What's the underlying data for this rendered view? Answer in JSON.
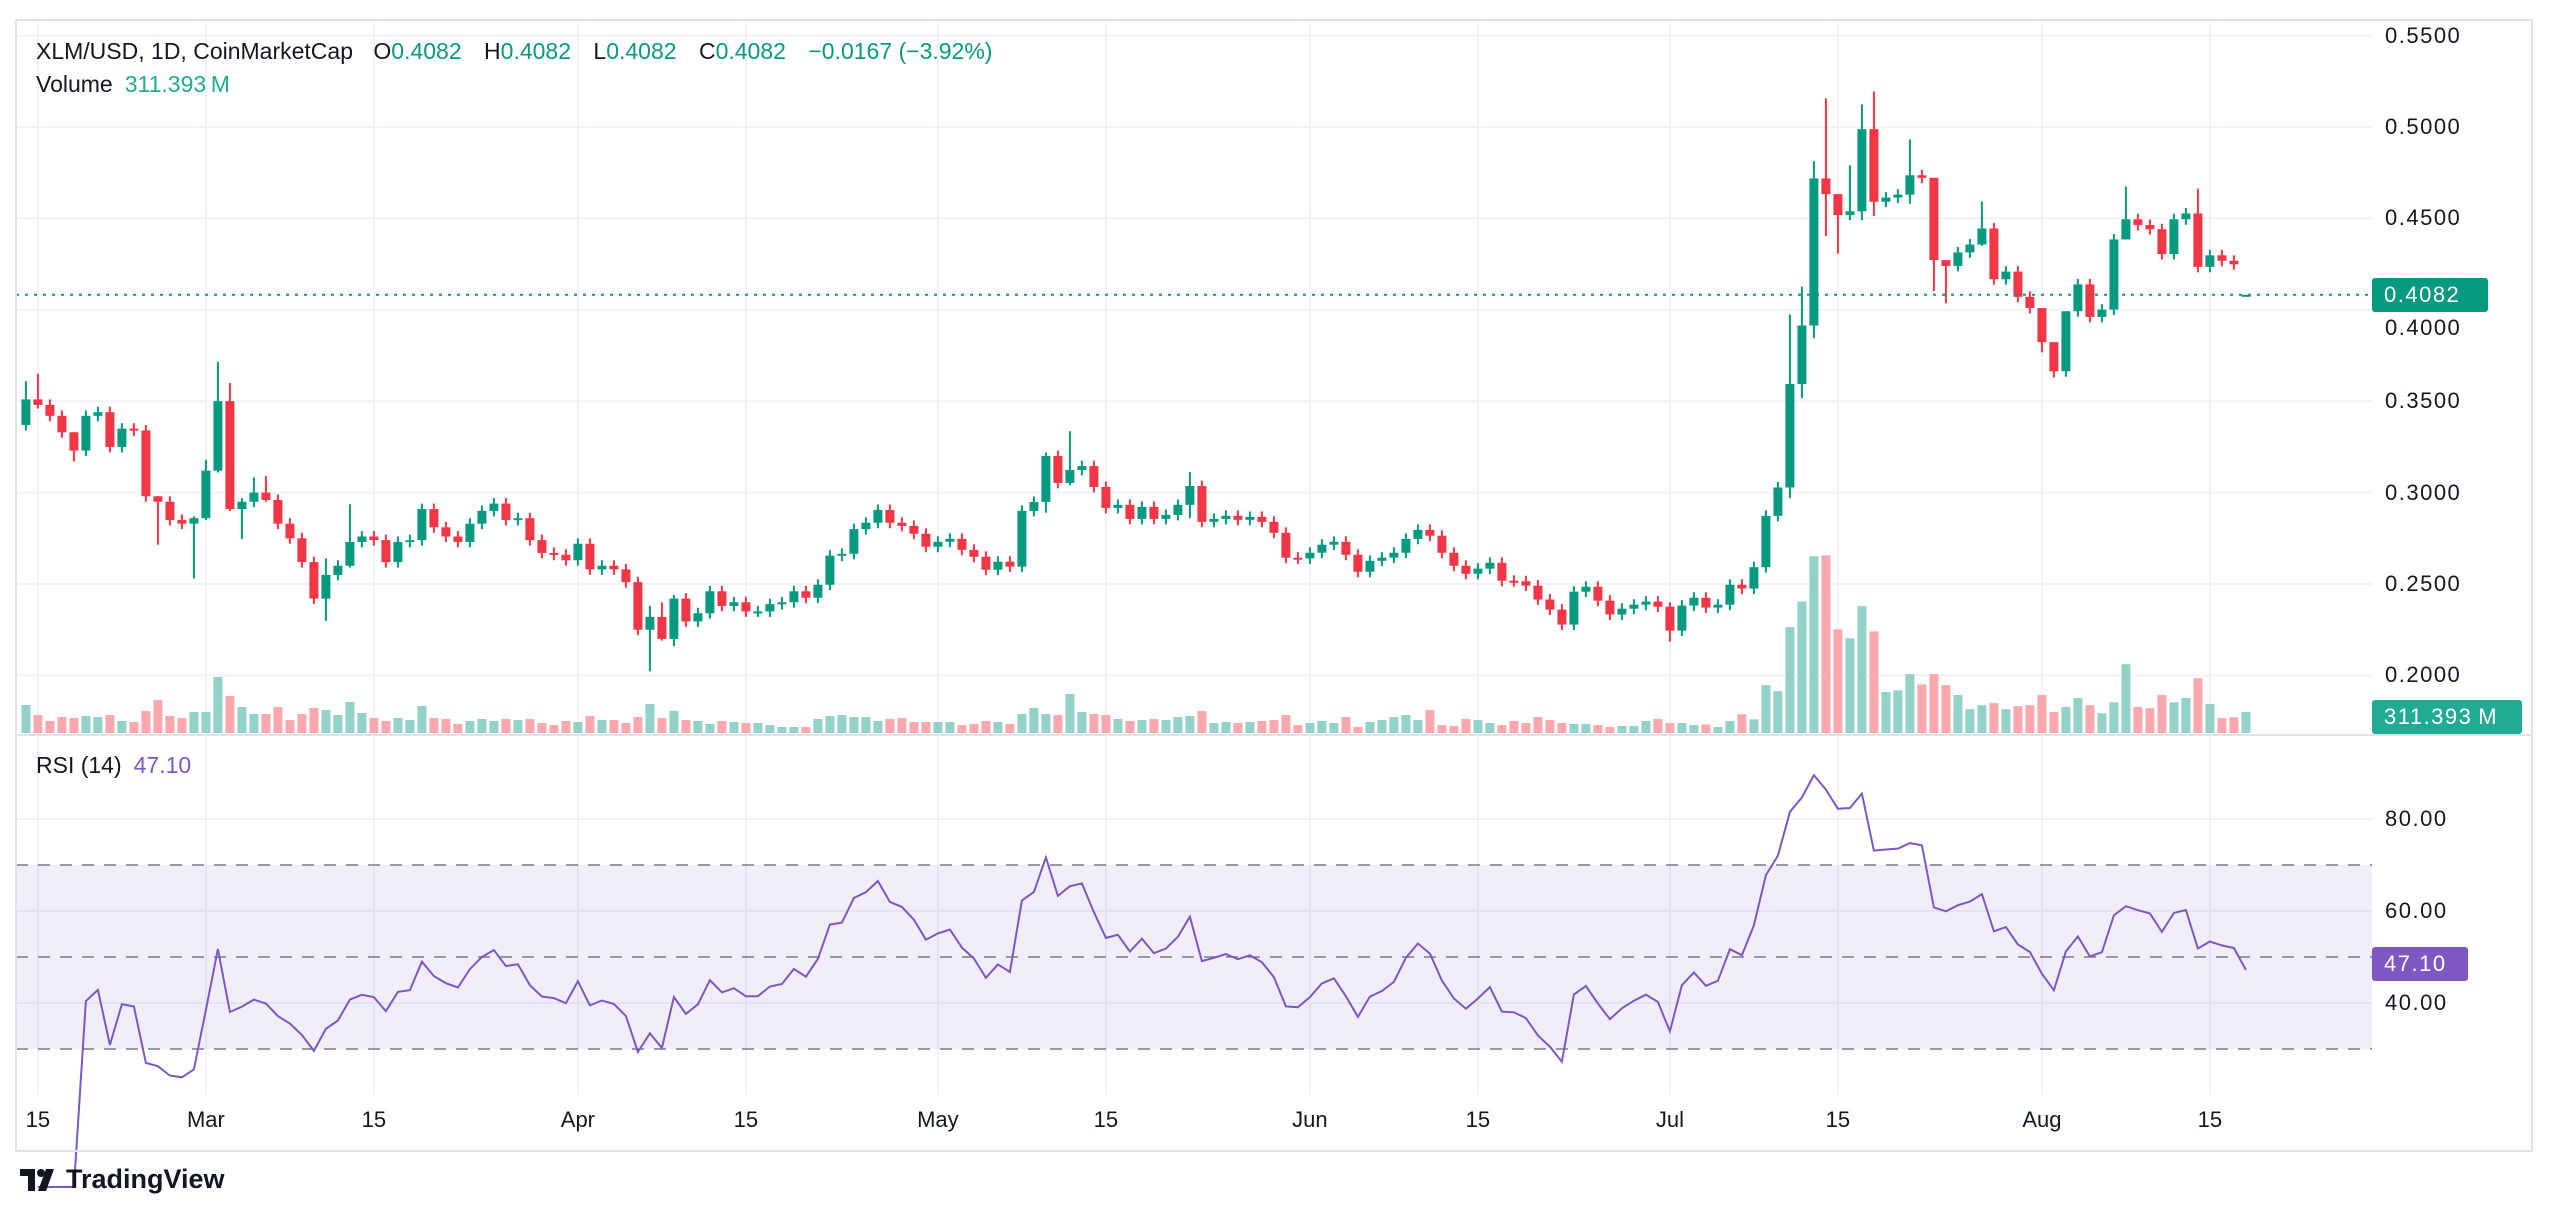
{
  "legend": {
    "symbol": "XLM/USD, 1D, CoinMarketCap",
    "o_label": "O",
    "o": "0.4082",
    "h_label": "H",
    "h": "0.4082",
    "l_label": "L",
    "l": "0.4082",
    "c_label": "C",
    "c": "0.4082",
    "change": "−0.0167 (−3.92%)",
    "volume_label": "Volume",
    "volume": "311.393 M",
    "rsi_label": "RSI (14)",
    "rsi": "47.10"
  },
  "tags": {
    "price": "0.4082",
    "volume": "311.393 M",
    "rsi": "47.10"
  },
  "colors": {
    "up": "#089981",
    "down": "#f23645",
    "volume_up": "#92d2c8",
    "volume_down": "#f9a9ae",
    "rsi": "#7e57c2",
    "grid": "#f0f3fa"
  },
  "branding": {
    "logo_text": "TradingView"
  },
  "chart_data": {
    "type": "candlestick",
    "title": "XLM/USD, 1D, CoinMarketCap",
    "interval": "1D",
    "x_start": "Feb 14",
    "x_end": "Aug 18",
    "price_ticks": [
      "0.5500",
      "0.5000",
      "0.4500",
      "0.4000",
      "0.3500",
      "0.3000",
      "0.2500",
      "0.2000"
    ],
    "price_tick_values": [
      0.55,
      0.5,
      0.45,
      0.4,
      0.35,
      0.3,
      0.25,
      0.2
    ],
    "time_ticks": [
      {
        "label": "15",
        "day": 2
      },
      {
        "label": "Mar",
        "day": 16
      },
      {
        "label": "15",
        "day": 30
      },
      {
        "label": "Apr",
        "day": 47
      },
      {
        "label": "15",
        "day": 61
      },
      {
        "label": "May",
        "day": 77
      },
      {
        "label": "15",
        "day": 91
      },
      {
        "label": "Jun",
        "day": 108
      },
      {
        "label": "15",
        "day": 122
      },
      {
        "label": "Jul",
        "day": 138
      },
      {
        "label": "15",
        "day": 152
      },
      {
        "label": "Aug",
        "day": 169
      },
      {
        "label": "15",
        "day": 183
      }
    ],
    "first_open": 0.337,
    "last_candle_flat": true,
    "close": [
      0.351,
      0.348,
      0.342,
      0.333,
      0.323,
      0.342,
      0.344,
      0.325,
      0.335,
      0.334,
      0.298,
      0.295,
      0.285,
      0.283,
      0.286,
      0.312,
      0.35,
      0.291,
      0.295,
      0.3,
      0.296,
      0.283,
      0.275,
      0.262,
      0.242,
      0.255,
      0.26,
      0.273,
      0.276,
      0.274,
      0.262,
      0.273,
      0.274,
      0.291,
      0.281,
      0.276,
      0.273,
      0.283,
      0.29,
      0.294,
      0.285,
      0.286,
      0.274,
      0.267,
      0.266,
      0.263,
      0.272,
      0.258,
      0.26,
      0.258,
      0.251,
      0.225,
      0.232,
      0.22,
      0.242,
      0.2295,
      0.234,
      0.246,
      0.238,
      0.24,
      0.235,
      0.235,
      0.239,
      0.24,
      0.246,
      0.2425,
      0.2496,
      0.2655,
      0.2665,
      0.28,
      0.2835,
      0.2905,
      0.2835,
      0.2818,
      0.2775,
      0.2704,
      0.2731,
      0.2747,
      0.2687,
      0.2649,
      0.2578,
      0.2622,
      0.2595,
      0.29,
      0.2949,
      0.32,
      0.3053,
      0.3124,
      0.3145,
      0.3031,
      0.2916,
      0.2933,
      0.2856,
      0.2922,
      0.2856,
      0.2878,
      0.2933,
      0.3036,
      0.284,
      0.2856,
      0.2873,
      0.2851,
      0.2867,
      0.284,
      0.278,
      0.2644,
      0.264,
      0.2671,
      0.2715,
      0.2731,
      0.266,
      0.2567,
      0.2627,
      0.2644,
      0.2671,
      0.2747,
      0.2796,
      0.2764,
      0.2671,
      0.26,
      0.2556,
      0.2584,
      0.2616,
      0.2518,
      0.2515,
      0.2491,
      0.2415,
      0.236,
      0.2278,
      0.2458,
      0.2485,
      0.2409,
      0.2333,
      0.2365,
      0.2387,
      0.2404,
      0.2376,
      0.2245,
      0.2382,
      0.2425,
      0.2371,
      0.2387,
      0.2496,
      0.2475,
      0.2592,
      0.2873,
      0.3028,
      0.3594,
      0.3914,
      0.4719,
      0.4633,
      0.4518,
      0.4539,
      0.4988,
      0.4591,
      0.4614,
      0.463,
      0.4736,
      0.4722,
      0.4272,
      0.424,
      0.4314,
      0.4357,
      0.4445,
      0.4167,
      0.4209,
      0.4071,
      0.401,
      0.3823,
      0.3664,
      0.3992,
      0.4139,
      0.3961,
      0.4001,
      0.4385,
      0.4495,
      0.4464,
      0.4441,
      0.4305,
      0.4495,
      0.4527,
      0.4235,
      0.4298,
      0.4268,
      0.4249,
      0.4082
    ],
    "wick_extremes": {
      "1": [
        0.361,
        0.334
      ],
      "2": [
        0.365,
        0.346
      ],
      "5": [
        0.333,
        0.317
      ],
      "12": [
        0.298,
        0.2715
      ],
      "15": [
        0.287,
        0.253
      ],
      "16": [
        0.318,
        0.285
      ],
      "17": [
        0.3716,
        0.311
      ],
      "18": [
        0.36,
        0.29
      ],
      "19": [
        0.297,
        0.2745
      ],
      "20": [
        0.3084,
        0.292
      ],
      "21": [
        0.309,
        0.295
      ],
      "26": [
        0.264,
        0.2298
      ],
      "28": [
        0.2936,
        0.259
      ],
      "53": [
        0.238,
        0.2022
      ],
      "54": [
        0.24,
        0.219
      ],
      "55": [
        0.244,
        0.216
      ],
      "86": [
        0.322,
        0.289
      ],
      "88": [
        0.3336,
        0.304
      ],
      "98": [
        0.3113,
        0.286
      ],
      "138": [
        0.24,
        0.2185
      ],
      "148": [
        0.3975,
        0.297
      ],
      "149": [
        0.4127,
        0.3517
      ],
      "150": [
        0.4813,
        0.3845
      ],
      "151": [
        0.5157,
        0.4403
      ],
      "152": [
        0.4633,
        0.4307
      ],
      "153": [
        0.479,
        0.449
      ],
      "154": [
        0.5124,
        0.449
      ],
      "155": [
        0.5194,
        0.4514
      ],
      "158": [
        0.4932,
        0.458
      ],
      "160": [
        0.4722,
        0.4102
      ],
      "161": [
        0.4272,
        0.4036
      ],
      "164": [
        0.4593,
        0.435
      ],
      "169": [
        0.401,
        0.3767
      ],
      "170": [
        0.3823,
        0.3629
      ],
      "171": [
        0.3992,
        0.3634
      ],
      "176": [
        0.4675,
        0.4385
      ],
      "182": [
        0.4663,
        0.4205
      ]
    },
    "volume_millions": [
      414,
      266,
      178,
      237,
      222,
      252,
      237,
      266,
      178,
      163,
      326,
      488,
      252,
      222,
      311,
      311,
      829,
      548,
      385,
      281,
      281,
      385,
      192,
      281,
      370,
      340,
      266,
      459,
      296,
      222,
      178,
      222,
      192,
      400,
      222,
      207,
      133,
      178,
      207,
      178,
      207,
      192,
      207,
      148,
      118,
      178,
      163,
      252,
      192,
      192,
      148,
      237,
      429,
      222,
      326,
      192,
      178,
      133,
      178,
      163,
      148,
      148,
      118,
      89,
      89,
      89,
      207,
      252,
      266,
      237,
      237,
      178,
      207,
      222,
      163,
      163,
      163,
      163,
      118,
      133,
      178,
      163,
      133,
      281,
      370,
      281,
      266,
      577,
      311,
      281,
      266,
      207,
      178,
      192,
      207,
      192,
      237,
      252,
      326,
      148,
      163,
      148,
      163,
      178,
      192,
      266,
      118,
      148,
      178,
      148,
      237,
      89,
      163,
      192,
      237,
      266,
      192,
      340,
      118,
      104,
      207,
      192,
      148,
      118,
      178,
      148,
      237,
      192,
      148,
      133,
      133,
      118,
      89,
      104,
      104,
      178,
      207,
      148,
      148,
      118,
      126,
      88,
      177,
      278,
      202,
      708,
      619,
      1567,
      1947,
      2617,
      2629,
      1536,
      1403,
      1877,
      1504,
      607,
      632,
      872,
      720,
      872,
      708,
      562,
      354,
      411,
      442,
      354,
      398,
      411,
      562,
      310,
      386,
      518,
      411,
      291,
      455,
      1018,
      386,
      367,
      562,
      455,
      518,
      809,
      430,
      221,
      234,
      311.393
    ],
    "rsi": {
      "period": 14,
      "last": 47.1,
      "levels": [
        70,
        50,
        30
      ],
      "ticks": [
        "80.00",
        "60.00",
        "40.00"
      ],
      "tick_values": [
        80,
        60,
        40
      ]
    }
  }
}
